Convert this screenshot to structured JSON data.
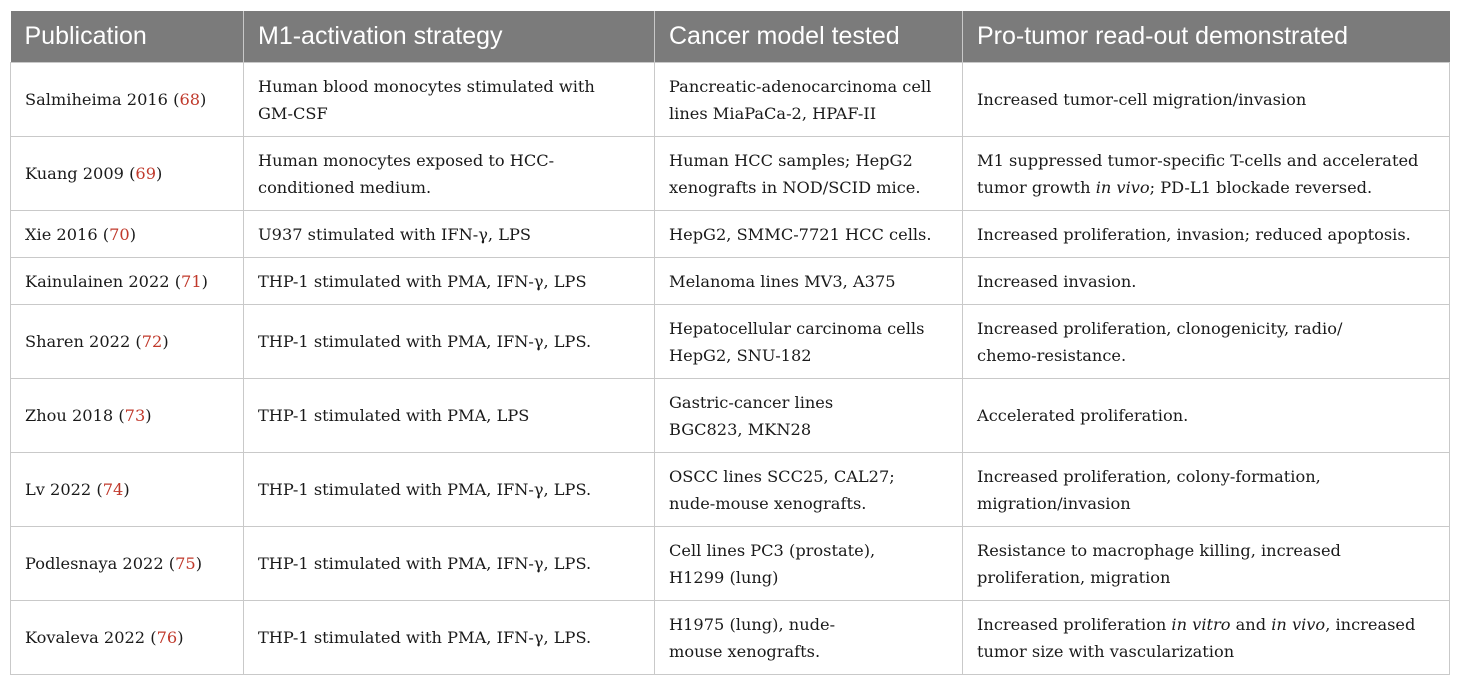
{
  "table": {
    "headers": [
      "Publication",
      "M1-activation strategy",
      "Cancer model tested",
      "Pro-tumor read-out demonstrated"
    ],
    "rows": [
      {
        "pub_name": "Salmiheima 2016",
        "pub_ref": "68",
        "strategy": [
          "Human blood monocytes stimulated with",
          "GM-CSF"
        ],
        "model": [
          "Pancreatic-adenocarcinoma cell",
          "lines MiaPaCa-2, HPAF-II"
        ],
        "readout": [
          "Increased tumor-cell migration/invasion"
        ]
      },
      {
        "pub_name": "Kuang 2009",
        "pub_ref": "69",
        "strategy": [
          "Human monocytes exposed to HCC-",
          "conditioned medium."
        ],
        "model": [
          "Human HCC samples; HepG2",
          "xenografts in NOD/SCID mice."
        ],
        "readout": {
          "line1": "M1 suppressed tumor-specific T-cells and accelerated",
          "line2_a": "tumor growth ",
          "line2_em": "in vivo",
          "line2_b": "; PD-L1 blockade reversed."
        }
      },
      {
        "pub_name": "Xie 2016",
        "pub_ref": "70",
        "strategy": [
          "U937 stimulated with IFN-γ, LPS"
        ],
        "model": [
          "HepG2, SMMC-7721 HCC cells."
        ],
        "readout": [
          "Increased proliferation, invasion; reduced apoptosis."
        ]
      },
      {
        "pub_name": "Kainulainen 2022",
        "pub_ref": "71",
        "strategy": [
          "THP-1 stimulated with PMA, IFN-γ, LPS"
        ],
        "model": [
          "Melanoma lines MV3, A375"
        ],
        "readout": [
          "Increased invasion."
        ]
      },
      {
        "pub_name": "Sharen 2022",
        "pub_ref": "72",
        "strategy": [
          "THP-1 stimulated with PMA, IFN-γ, LPS."
        ],
        "model": [
          "Hepatocellular carcinoma cells",
          "HepG2, SNU-182"
        ],
        "readout": [
          "Increased proliferation, clonogenicity, radio/",
          "chemo-resistance."
        ]
      },
      {
        "pub_name": "Zhou 2018",
        "pub_ref": "73",
        "strategy": [
          "THP-1 stimulated with PMA, LPS"
        ],
        "model": [
          "Gastric-cancer lines",
          "BGC823, MKN28"
        ],
        "readout": [
          "Accelerated proliferation."
        ]
      },
      {
        "pub_name": "Lv 2022",
        "pub_ref": "74",
        "strategy": [
          "THP-1 stimulated with PMA, IFN-γ, LPS."
        ],
        "model": [
          "OSCC lines SCC25, CAL27;",
          "nude-mouse xenografts."
        ],
        "readout": [
          "Increased proliferation, colony-formation,",
          "migration/invasion"
        ]
      },
      {
        "pub_name": "Podlesnaya 2022",
        "pub_ref": "75",
        "strategy": [
          "THP-1 stimulated with PMA, IFN-γ, LPS."
        ],
        "model": [
          "Cell lines PC3 (prostate),",
          "H1299 (lung)"
        ],
        "readout": [
          "Resistance to macrophage killing, increased",
          "proliferation, migration"
        ]
      },
      {
        "pub_name": "Kovaleva 2022",
        "pub_ref": "76",
        "strategy": [
          "THP-1 stimulated with PMA, IFN-γ, LPS."
        ],
        "model": [
          "H1975 (lung), nude-",
          "mouse xenografts."
        ],
        "readout": {
          "line1_a": "Increased proliferation ",
          "line1_em1": "in vitro",
          "line1_b": " and ",
          "line1_em2": "in vivo",
          "line1_c": ", increased",
          "line2": "tumor size with vascularization"
        }
      }
    ]
  }
}
